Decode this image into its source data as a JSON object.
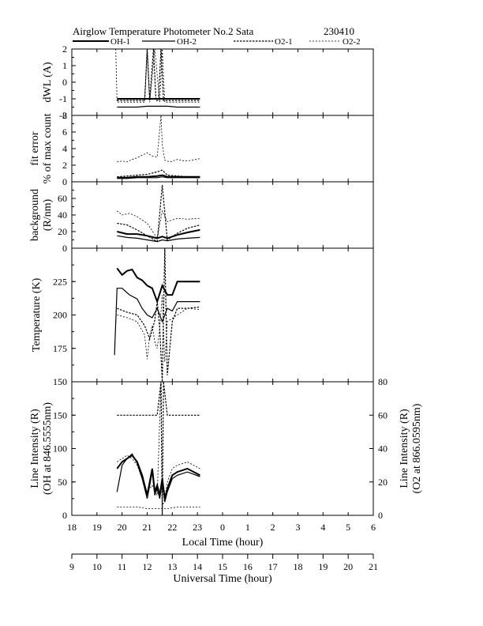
{
  "header": {
    "title": "Airglow Temperature Photometer No.2  Sata",
    "date_code": "230410"
  },
  "legend": [
    "OH-1",
    "OH-2",
    "O2-1",
    "O2-2"
  ],
  "axes": {
    "local_label": "Local Time (hour)",
    "local_ticks": [
      "18",
      "19",
      "20",
      "21",
      "22",
      "23",
      "0",
      "1",
      "2",
      "3",
      "4",
      "5",
      "6"
    ],
    "ut_label": "Universal Time (hour)",
    "ut_ticks": [
      "9",
      "10",
      "11",
      "12",
      "13",
      "14",
      "15",
      "16",
      "17",
      "18",
      "19",
      "20",
      "21"
    ]
  },
  "colors": {
    "line": "#000000",
    "background": "#ffffff"
  },
  "chart_data": [
    {
      "type": "line",
      "ylabel": "dWL (A)",
      "ylim": [
        -2,
        2
      ],
      "yticks": [
        "2",
        "1",
        "0",
        "-1",
        "-2"
      ],
      "series": [
        {
          "name": "OH-1",
          "x": [
            19.8,
            20.2,
            20.6,
            21.0,
            21.4,
            21.8,
            22.2,
            22.6,
            23.1
          ],
          "y": [
            -1.0,
            -1.0,
            -1.0,
            -1.0,
            -1.0,
            -1.0,
            -1.0,
            -1.0,
            -1.0
          ]
        },
        {
          "name": "OH-2",
          "x": [
            19.8,
            20.2,
            20.6,
            21.0,
            21.4,
            21.8,
            22.2,
            22.6,
            23.1
          ],
          "y": [
            -1.5,
            -1.5,
            -1.5,
            -1.45,
            -1.45,
            -1.45,
            -1.5,
            -1.5,
            -1.5
          ]
        },
        {
          "name": "O2-1",
          "x": [
            19.8,
            20.2,
            20.6,
            20.9,
            21.0,
            21.1,
            21.25,
            21.35,
            21.45,
            21.55,
            21.65,
            21.8,
            22.2,
            22.6,
            23.1
          ],
          "y": [
            -1.1,
            -1.1,
            -1.1,
            -1.1,
            2.0,
            -1.1,
            2.0,
            -1.1,
            -1.1,
            2.0,
            -1.1,
            -1.1,
            -1.1,
            -1.1,
            -1.1
          ]
        },
        {
          "name": "O2-2",
          "x": [
            19.75,
            19.8,
            20.2,
            20.6,
            20.9,
            21.0,
            21.1,
            21.3,
            21.5,
            21.6,
            21.7,
            21.8,
            22.2,
            22.6,
            23.1
          ],
          "y": [
            2.0,
            -1.2,
            -1.2,
            -1.2,
            -1.2,
            2.0,
            -1.2,
            2.0,
            -1.2,
            2.0,
            -1.2,
            -1.2,
            -1.2,
            -1.2,
            -1.2
          ]
        }
      ]
    },
    {
      "type": "line",
      "ylabel": "fit error",
      "ylabel2": "% of max count",
      "ylim": [
        0,
        8
      ],
      "yticks": [
        "8",
        "6",
        "4",
        "2",
        "0"
      ],
      "series": [
        {
          "name": "OH-1",
          "x": [
            19.8,
            20.2,
            20.6,
            21.0,
            21.4,
            21.6,
            21.8,
            22.2,
            22.6,
            23.1
          ],
          "y": [
            0.5,
            0.5,
            0.6,
            0.6,
            0.7,
            0.8,
            0.6,
            0.6,
            0.6,
            0.6
          ]
        },
        {
          "name": "OH-2",
          "x": [
            19.8,
            20.2,
            20.6,
            21.0,
            21.4,
            21.6,
            21.8,
            22.2,
            22.6,
            23.1
          ],
          "y": [
            0.4,
            0.4,
            0.5,
            0.5,
            0.5,
            0.6,
            0.5,
            0.5,
            0.5,
            0.5
          ]
        },
        {
          "name": "O2-1",
          "x": [
            19.8,
            20.2,
            20.6,
            21.0,
            21.4,
            21.6,
            21.8,
            22.2,
            22.6,
            23.1
          ],
          "y": [
            0.6,
            0.7,
            0.8,
            0.9,
            1.2,
            1.4,
            0.8,
            0.7,
            0.6,
            0.6
          ]
        },
        {
          "name": "O2-2",
          "x": [
            19.8,
            20.0,
            20.2,
            20.4,
            20.6,
            20.8,
            21.0,
            21.2,
            21.4,
            21.55,
            21.6,
            21.7,
            21.9,
            22.2,
            22.5,
            22.8,
            23.1
          ],
          "y": [
            2.4,
            2.5,
            2.4,
            2.7,
            2.9,
            3.2,
            3.5,
            3.1,
            3.0,
            8.0,
            4.5,
            2.6,
            2.4,
            2.7,
            2.5,
            2.6,
            2.8
          ]
        }
      ]
    },
    {
      "type": "line",
      "ylabel": "background",
      "ylabel2": "(R/nm)",
      "ylim": [
        0,
        80
      ],
      "yticks": [
        "60",
        "40",
        "20",
        "0"
      ],
      "series": [
        {
          "name": "OH-1",
          "x": [
            19.8,
            20.2,
            20.6,
            21.0,
            21.4,
            21.6,
            21.8,
            22.2,
            22.6,
            23.1
          ],
          "y": [
            20,
            17,
            17,
            15,
            12,
            14,
            12,
            16,
            19,
            22
          ]
        },
        {
          "name": "OH-2",
          "x": [
            19.8,
            20.2,
            20.6,
            21.0,
            21.4,
            21.6,
            21.8,
            22.2,
            22.6,
            23.1
          ],
          "y": [
            15,
            13,
            12,
            10,
            8,
            10,
            9,
            11,
            12,
            13
          ]
        },
        {
          "name": "O2-1",
          "x": [
            19.8,
            20.2,
            20.6,
            21.0,
            21.4,
            21.6,
            21.8,
            22.2,
            22.6,
            23.1
          ],
          "y": [
            30,
            28,
            22,
            15,
            8,
            76,
            10,
            18,
            24,
            28
          ]
        },
        {
          "name": "O2-2",
          "x": [
            19.8,
            20.0,
            20.3,
            20.6,
            21.0,
            21.4,
            21.6,
            21.8,
            22.2,
            22.6,
            23.1
          ],
          "y": [
            45,
            40,
            42,
            38,
            30,
            12,
            45,
            32,
            36,
            35,
            36
          ]
        }
      ]
    },
    {
      "type": "line",
      "ylabel": "Temperature (K)",
      "ylim": [
        150,
        250
      ],
      "yticks": [
        "225",
        "200",
        "175",
        "150"
      ],
      "series": [
        {
          "name": "OH-1",
          "x": [
            19.8,
            20.0,
            20.2,
            20.4,
            20.6,
            20.8,
            21.0,
            21.2,
            21.4,
            21.6,
            21.8,
            22.0,
            22.2,
            22.6,
            23.1
          ],
          "y": [
            235,
            230,
            233,
            234,
            228,
            226,
            222,
            220,
            210,
            222,
            215,
            215,
            225,
            225,
            225
          ]
        },
        {
          "name": "OH-2",
          "x": [
            19.7,
            19.8,
            20.0,
            20.3,
            20.6,
            20.8,
            21.0,
            21.2,
            21.4,
            21.6,
            21.8,
            22.0,
            22.2,
            22.6,
            23.1
          ],
          "y": [
            170,
            220,
            220,
            215,
            212,
            205,
            200,
            198,
            205,
            195,
            205,
            203,
            210,
            210,
            210
          ]
        },
        {
          "name": "O2-1",
          "x": [
            19.8,
            20.2,
            20.6,
            20.9,
            21.1,
            21.3,
            21.4,
            21.5,
            21.6,
            21.7,
            21.8,
            22.0,
            22.2,
            22.6,
            23.1
          ],
          "y": [
            205,
            202,
            200,
            192,
            182,
            196,
            210,
            190,
            150,
            250,
            155,
            195,
            205,
            205,
            206
          ]
        },
        {
          "name": "O2-2",
          "x": [
            19.8,
            20.2,
            20.6,
            20.9,
            21.0,
            21.1,
            21.2,
            21.3,
            21.4,
            21.5,
            21.6,
            21.7,
            21.8,
            22.2,
            22.6,
            23.1
          ],
          "y": [
            200,
            198,
            195,
            185,
            167,
            185,
            192,
            180,
            175,
            190,
            215,
            165,
            195,
            200,
            205,
            204
          ]
        }
      ]
    },
    {
      "type": "line",
      "ylabel": "Line Intensity (R)",
      "ylabel2": "(OH at 846.5555nm)",
      "ylabel_right": "Line Intensity (R)",
      "ylabel_right2": "(O2 at 866.0595nm)",
      "ylim": [
        0,
        200
      ],
      "ylim_right": [
        0,
        80
      ],
      "yticks": [
        "150",
        "100",
        "50",
        "0"
      ],
      "yticks_right": [
        "80",
        "60",
        "40",
        "20",
        "0"
      ],
      "series": [
        {
          "name": "OH-1",
          "x": [
            19.8,
            20.0,
            20.2,
            20.4,
            20.6,
            20.8,
            21.0,
            21.1,
            21.2,
            21.3,
            21.4,
            21.5,
            21.6,
            21.7,
            21.8,
            22.0,
            22.2,
            22.6,
            23.1
          ],
          "y": [
            70,
            80,
            85,
            90,
            80,
            60,
            30,
            50,
            70,
            35,
            45,
            30,
            55,
            25,
            40,
            60,
            65,
            70,
            60
          ]
        },
        {
          "name": "OH-2",
          "x": [
            19.8,
            20.0,
            20.2,
            20.4,
            20.6,
            20.8,
            21.0,
            21.1,
            21.2,
            21.3,
            21.4,
            21.5,
            21.6,
            21.7,
            21.8,
            22.0,
            22.2,
            22.6,
            23.1
          ],
          "y": [
            35,
            75,
            85,
            92,
            78,
            55,
            25,
            45,
            65,
            30,
            40,
            25,
            50,
            20,
            35,
            55,
            60,
            65,
            58
          ]
        },
        {
          "name": "O2-1",
          "x": [
            19.8,
            20.2,
            20.6,
            21.0,
            21.4,
            21.55,
            21.6,
            21.65,
            21.8,
            22.2,
            22.6,
            23.1
          ],
          "y": [
            60,
            60,
            60,
            60,
            60,
            80,
            0,
            80,
            60,
            60,
            60,
            60
          ]
        },
        {
          "name": "O2-2",
          "x": [
            19.8,
            20.0,
            20.2,
            20.4,
            20.6,
            20.8,
            21.0,
            21.2,
            21.4,
            21.55,
            21.6,
            21.7,
            21.8,
            22.0,
            22.2,
            22.6,
            23.1
          ],
          "y": [
            32,
            34,
            36,
            34,
            30,
            22,
            14,
            18,
            12,
            80,
            5,
            10,
            20,
            28,
            30,
            32,
            28
          ]
        },
        {
          "name": "O2-2 floor",
          "x": [
            19.8,
            20.2,
            20.6,
            21.0,
            21.4,
            21.8,
            22.2,
            22.6,
            23.1
          ],
          "y": [
            5,
            5,
            5,
            4,
            4,
            4,
            5,
            5,
            5
          ]
        }
      ]
    }
  ]
}
